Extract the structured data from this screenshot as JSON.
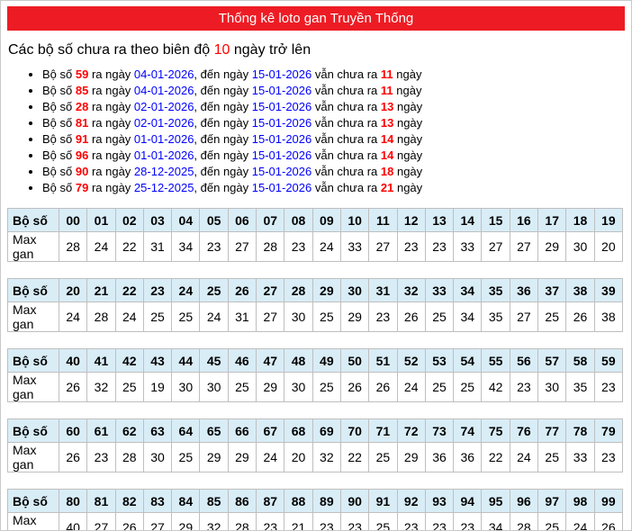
{
  "title": "Thống kê loto gan Truyền Thống",
  "subtitle": {
    "prefix": "Các bộ số chưa ra theo biên độ ",
    "threshold": "10",
    "suffix": " ngày trở lên"
  },
  "gan_list": {
    "seg_bo_so": "Bộ số ",
    "seg_ra_ngay": " ra ngày ",
    "seg_den_ngay": ", đến ngày ",
    "seg_chua_ra": " vẫn chưa ra ",
    "seg_ngay": " ngày",
    "items": [
      {
        "number": "59",
        "from_date": "04-01-2026",
        "to_date": "15-01-2026",
        "days": "11"
      },
      {
        "number": "85",
        "from_date": "04-01-2026",
        "to_date": "15-01-2026",
        "days": "11"
      },
      {
        "number": "28",
        "from_date": "02-01-2026",
        "to_date": "15-01-2026",
        "days": "13"
      },
      {
        "number": "81",
        "from_date": "02-01-2026",
        "to_date": "15-01-2026",
        "days": "13"
      },
      {
        "number": "91",
        "from_date": "01-01-2026",
        "to_date": "15-01-2026",
        "days": "14"
      },
      {
        "number": "96",
        "from_date": "01-01-2026",
        "to_date": "15-01-2026",
        "days": "14"
      },
      {
        "number": "90",
        "from_date": "28-12-2025",
        "to_date": "15-01-2026",
        "days": "18"
      },
      {
        "number": "79",
        "from_date": "25-12-2025",
        "to_date": "15-01-2026",
        "days": "21"
      }
    ]
  },
  "tables": {
    "row_header_label": "Bộ số",
    "row_value_label": "Max gan",
    "groups": [
      {
        "numbers": [
          "00",
          "01",
          "02",
          "03",
          "04",
          "05",
          "06",
          "07",
          "08",
          "09",
          "10",
          "11",
          "12",
          "13",
          "14",
          "15",
          "16",
          "17",
          "18",
          "19"
        ],
        "max_gan": [
          "28",
          "24",
          "22",
          "31",
          "34",
          "23",
          "27",
          "28",
          "23",
          "24",
          "33",
          "27",
          "23",
          "23",
          "33",
          "27",
          "27",
          "29",
          "30",
          "20"
        ]
      },
      {
        "numbers": [
          "20",
          "21",
          "22",
          "23",
          "24",
          "25",
          "26",
          "27",
          "28",
          "29",
          "30",
          "31",
          "32",
          "33",
          "34",
          "35",
          "36",
          "37",
          "38",
          "39"
        ],
        "max_gan": [
          "24",
          "28",
          "24",
          "25",
          "25",
          "24",
          "31",
          "27",
          "30",
          "25",
          "29",
          "23",
          "26",
          "25",
          "34",
          "35",
          "27",
          "25",
          "26",
          "38"
        ]
      },
      {
        "numbers": [
          "40",
          "41",
          "42",
          "43",
          "44",
          "45",
          "46",
          "47",
          "48",
          "49",
          "50",
          "51",
          "52",
          "53",
          "54",
          "55",
          "56",
          "57",
          "58",
          "59"
        ],
        "max_gan": [
          "26",
          "32",
          "25",
          "19",
          "30",
          "30",
          "25",
          "29",
          "30",
          "25",
          "26",
          "26",
          "24",
          "25",
          "25",
          "42",
          "23",
          "30",
          "35",
          "23"
        ]
      },
      {
        "numbers": [
          "60",
          "61",
          "62",
          "63",
          "64",
          "65",
          "66",
          "67",
          "68",
          "69",
          "70",
          "71",
          "72",
          "73",
          "74",
          "75",
          "76",
          "77",
          "78",
          "79"
        ],
        "max_gan": [
          "26",
          "23",
          "28",
          "30",
          "25",
          "29",
          "29",
          "24",
          "20",
          "32",
          "22",
          "25",
          "29",
          "36",
          "36",
          "22",
          "24",
          "25",
          "33",
          "23"
        ]
      },
      {
        "numbers": [
          "80",
          "81",
          "82",
          "83",
          "84",
          "85",
          "86",
          "87",
          "88",
          "89",
          "90",
          "91",
          "92",
          "93",
          "94",
          "95",
          "96",
          "97",
          "98",
          "99"
        ],
        "max_gan": [
          "40",
          "27",
          "26",
          "27",
          "29",
          "32",
          "28",
          "23",
          "21",
          "23",
          "23",
          "25",
          "23",
          "23",
          "23",
          "34",
          "28",
          "25",
          "24",
          "26"
        ]
      }
    ]
  },
  "colors": {
    "header_background": "#ed1c24",
    "header_text": "#ffffff",
    "highlight_red": "#ff0000",
    "date_blue": "#0000ff",
    "table_header_background": "#d9edf7",
    "table_border": "#bfbfbf"
  }
}
